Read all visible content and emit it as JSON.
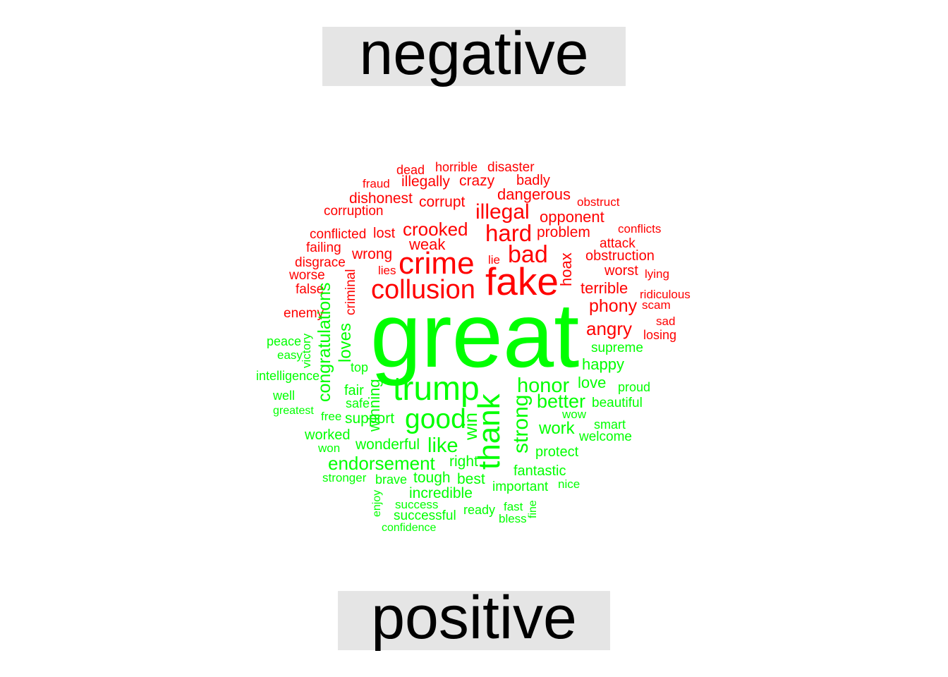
{
  "labels": {
    "negative": "negative",
    "positive": "positive"
  },
  "colors": {
    "negative": "#ff0000",
    "positive": "#00ff00",
    "label_bg": "#e5e5e5"
  },
  "words": [
    {
      "t": "dead",
      "s": "negative",
      "w": 1
    },
    {
      "t": "horrible",
      "s": "negative",
      "w": 1
    },
    {
      "t": "disaster",
      "s": "negative",
      "w": 1
    },
    {
      "t": "fraud",
      "s": "negative",
      "w": 1
    },
    {
      "t": "illegally",
      "s": "negative",
      "w": 2
    },
    {
      "t": "crazy",
      "s": "negative",
      "w": 2
    },
    {
      "t": "badly",
      "s": "negative",
      "w": 2
    },
    {
      "t": "dishonest",
      "s": "negative",
      "w": 2
    },
    {
      "t": "dangerous",
      "s": "negative",
      "w": 2
    },
    {
      "t": "obstruct",
      "s": "negative",
      "w": 1
    },
    {
      "t": "corruption",
      "s": "negative",
      "w": 2
    },
    {
      "t": "corrupt",
      "s": "negative",
      "w": 2
    },
    {
      "t": "illegal",
      "s": "negative",
      "w": 4
    },
    {
      "t": "opponent",
      "s": "negative",
      "w": 2
    },
    {
      "t": "conflicts",
      "s": "negative",
      "w": 1
    },
    {
      "t": "conflicted",
      "s": "negative",
      "w": 2
    },
    {
      "t": "lost",
      "s": "negative",
      "w": 2
    },
    {
      "t": "crooked",
      "s": "negative",
      "w": 3
    },
    {
      "t": "hard",
      "s": "negative",
      "w": 5
    },
    {
      "t": "problem",
      "s": "negative",
      "w": 2
    },
    {
      "t": "attack",
      "s": "negative",
      "w": 2
    },
    {
      "t": "failing",
      "s": "negative",
      "w": 2
    },
    {
      "t": "wrong",
      "s": "negative",
      "w": 2
    },
    {
      "t": "weak",
      "s": "negative",
      "w": 2
    },
    {
      "t": "bad",
      "s": "negative",
      "w": 5
    },
    {
      "t": "obstruction",
      "s": "negative",
      "w": 2
    },
    {
      "t": "disgrace",
      "s": "negative",
      "w": 2
    },
    {
      "t": "crime",
      "s": "negative",
      "w": 7
    },
    {
      "t": "lie",
      "s": "negative",
      "w": 1
    },
    {
      "t": "hoax",
      "s": "negative",
      "w": 2
    },
    {
      "t": "worst",
      "s": "negative",
      "w": 2
    },
    {
      "t": "worse",
      "s": "negative",
      "w": 2
    },
    {
      "t": "lies",
      "s": "negative",
      "w": 1
    },
    {
      "t": "lying",
      "s": "negative",
      "w": 1
    },
    {
      "t": "fake",
      "s": "negative",
      "w": 9
    },
    {
      "t": "false",
      "s": "negative",
      "w": 2
    },
    {
      "t": "criminal",
      "s": "negative",
      "w": 1
    },
    {
      "t": "collusion",
      "s": "negative",
      "w": 6
    },
    {
      "t": "terrible",
      "s": "negative",
      "w": 2
    },
    {
      "t": "ridiculous",
      "s": "negative",
      "w": 1
    },
    {
      "t": "enemy",
      "s": "negative",
      "w": 2
    },
    {
      "t": "phony",
      "s": "negative",
      "w": 3
    },
    {
      "t": "scam",
      "s": "negative",
      "w": 1
    },
    {
      "t": "sad",
      "s": "negative",
      "w": 1
    },
    {
      "t": "angry",
      "s": "negative",
      "w": 3
    },
    {
      "t": "losing",
      "s": "negative",
      "w": 1
    },
    {
      "t": "great",
      "s": "positive",
      "w": 20
    },
    {
      "t": "congratulations",
      "s": "positive",
      "w": 4
    },
    {
      "t": "peace",
      "s": "positive",
      "w": 2
    },
    {
      "t": "victory",
      "s": "positive",
      "w": 1
    },
    {
      "t": "loves",
      "s": "positive",
      "w": 2
    },
    {
      "t": "supreme",
      "s": "positive",
      "w": 2
    },
    {
      "t": "easy",
      "s": "positive",
      "w": 1
    },
    {
      "t": "top",
      "s": "positive",
      "w": 1
    },
    {
      "t": "happy",
      "s": "positive",
      "w": 2
    },
    {
      "t": "intelligence",
      "s": "positive",
      "w": 2
    },
    {
      "t": "love",
      "s": "positive",
      "w": 2
    },
    {
      "t": "proud",
      "s": "positive",
      "w": 1
    },
    {
      "t": "honor",
      "s": "positive",
      "w": 3
    },
    {
      "t": "fair",
      "s": "positive",
      "w": 2
    },
    {
      "t": "winning",
      "s": "positive",
      "w": 2
    },
    {
      "t": "well",
      "s": "positive",
      "w": 2
    },
    {
      "t": "trump",
      "s": "positive",
      "w": 9
    },
    {
      "t": "beautiful",
      "s": "positive",
      "w": 2
    },
    {
      "t": "better",
      "s": "positive",
      "w": 3
    },
    {
      "t": "safe",
      "s": "positive",
      "w": 1
    },
    {
      "t": "greatest",
      "s": "positive",
      "w": 1
    },
    {
      "t": "wow",
      "s": "positive",
      "w": 1
    },
    {
      "t": "free",
      "s": "positive",
      "w": 1
    },
    {
      "t": "support",
      "s": "positive",
      "w": 2
    },
    {
      "t": "good",
      "s": "positive",
      "w": 6
    },
    {
      "t": "smart",
      "s": "positive",
      "w": 1
    },
    {
      "t": "win",
      "s": "positive",
      "w": 3
    },
    {
      "t": "thank",
      "s": "positive",
      "w": 8
    },
    {
      "t": "strong",
      "s": "positive",
      "w": 4
    },
    {
      "t": "work",
      "s": "positive",
      "w": 3
    },
    {
      "t": "worked",
      "s": "positive",
      "w": 2
    },
    {
      "t": "welcome",
      "s": "positive",
      "w": 1
    },
    {
      "t": "won",
      "s": "positive",
      "w": 1
    },
    {
      "t": "wonderful",
      "s": "positive",
      "w": 2
    },
    {
      "t": "like",
      "s": "positive",
      "w": 3
    },
    {
      "t": "protect",
      "s": "positive",
      "w": 2
    },
    {
      "t": "endorsement",
      "s": "positive",
      "w": 3
    },
    {
      "t": "right",
      "s": "positive",
      "w": 2
    },
    {
      "t": "fantastic",
      "s": "positive",
      "w": 2
    },
    {
      "t": "stronger",
      "s": "positive",
      "w": 1
    },
    {
      "t": "brave",
      "s": "positive",
      "w": 1
    },
    {
      "t": "tough",
      "s": "positive",
      "w": 2
    },
    {
      "t": "best",
      "s": "positive",
      "w": 2
    },
    {
      "t": "nice",
      "s": "positive",
      "w": 1
    },
    {
      "t": "important",
      "s": "positive",
      "w": 2
    },
    {
      "t": "incredible",
      "s": "positive",
      "w": 2
    },
    {
      "t": "enjoy",
      "s": "positive",
      "w": 1
    },
    {
      "t": "success",
      "s": "positive",
      "w": 1
    },
    {
      "t": "ready",
      "s": "positive",
      "w": 1
    },
    {
      "t": "fast",
      "s": "positive",
      "w": 1
    },
    {
      "t": "fine",
      "s": "positive",
      "w": 1
    },
    {
      "t": "successful",
      "s": "positive",
      "w": 1
    },
    {
      "t": "bless",
      "s": "positive",
      "w": 1
    },
    {
      "t": "confidence",
      "s": "positive",
      "w": 1
    }
  ]
}
